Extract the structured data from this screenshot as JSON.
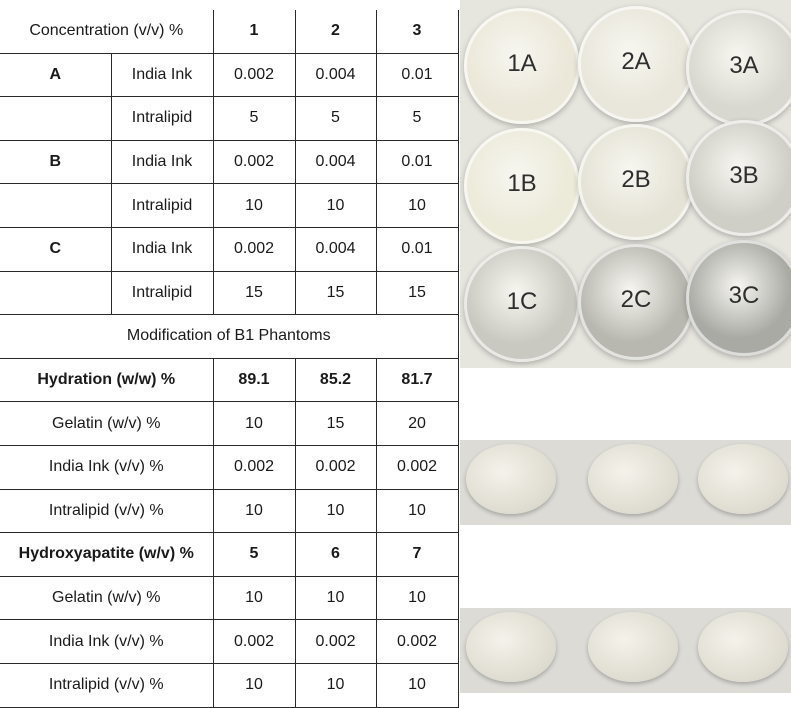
{
  "table": {
    "header": [
      "Concentration (v/v) %",
      "1",
      "2",
      "3"
    ],
    "group_a": {
      "label": "A",
      "ink": {
        "name": "India Ink",
        "values": [
          "0.002",
          "0.004",
          "0.01"
        ]
      },
      "lipid": {
        "name": "Intralipid",
        "values": [
          "5",
          "5",
          "5"
        ]
      }
    },
    "group_b": {
      "label": "B",
      "ink": {
        "name": "India Ink",
        "values": [
          "0.002",
          "0.004",
          "0.01"
        ]
      },
      "lipid": {
        "name": "Intralipid",
        "values": [
          "10",
          "10",
          "10"
        ]
      }
    },
    "group_c": {
      "label": "C",
      "ink": {
        "name": "India Ink",
        "values": [
          "0.002",
          "0.004",
          "0.01"
        ]
      },
      "lipid": {
        "name": "Intralipid",
        "values": [
          "15",
          "15",
          "15"
        ]
      }
    },
    "modification_title": "Modification of B1 Phantoms",
    "hydration": {
      "header": {
        "label": "Hydration (w/w) %",
        "values": [
          "89.1",
          "85.2",
          "81.7"
        ]
      },
      "gelatin": {
        "label": "Gelatin (w/v) %",
        "values": [
          "10",
          "15",
          "20"
        ]
      },
      "ink": {
        "label": "India Ink (v/v) %",
        "values": [
          "0.002",
          "0.002",
          "0.002"
        ]
      },
      "lipid": {
        "label": "Intralipid (v/v) %",
        "values": [
          "10",
          "10",
          "10"
        ]
      }
    },
    "hydroxyapatite": {
      "header": {
        "label": "Hydroxyapatite (w/v) %",
        "values": [
          "5",
          "6",
          "7"
        ]
      },
      "gelatin": {
        "label": "Gelatin (w/v) %",
        "values": [
          "10",
          "10",
          "10"
        ]
      },
      "ink": {
        "label": "India Ink (v/v) %",
        "values": [
          "0.002",
          "0.002",
          "0.002"
        ]
      },
      "lipid": {
        "label": "Intralipid (v/v) %",
        "values": [
          "10",
          "10",
          "10"
        ]
      }
    }
  },
  "photo_top": {
    "discs": [
      {
        "label": "1A",
        "color": "#ebe8d9"
      },
      {
        "label": "2A",
        "color": "#e9e7db"
      },
      {
        "label": "3A",
        "color": "#d9d8d0"
      },
      {
        "label": "1B",
        "color": "#ecead9"
      },
      {
        "label": "2B",
        "color": "#e5e3d6"
      },
      {
        "label": "3B",
        "color": "#cfcfc8"
      },
      {
        "label": "1C",
        "color": "#c9c9c1"
      },
      {
        "label": "2C",
        "color": "#b8b8b1"
      },
      {
        "label": "3C",
        "color": "#a9aaa4"
      }
    ]
  }
}
